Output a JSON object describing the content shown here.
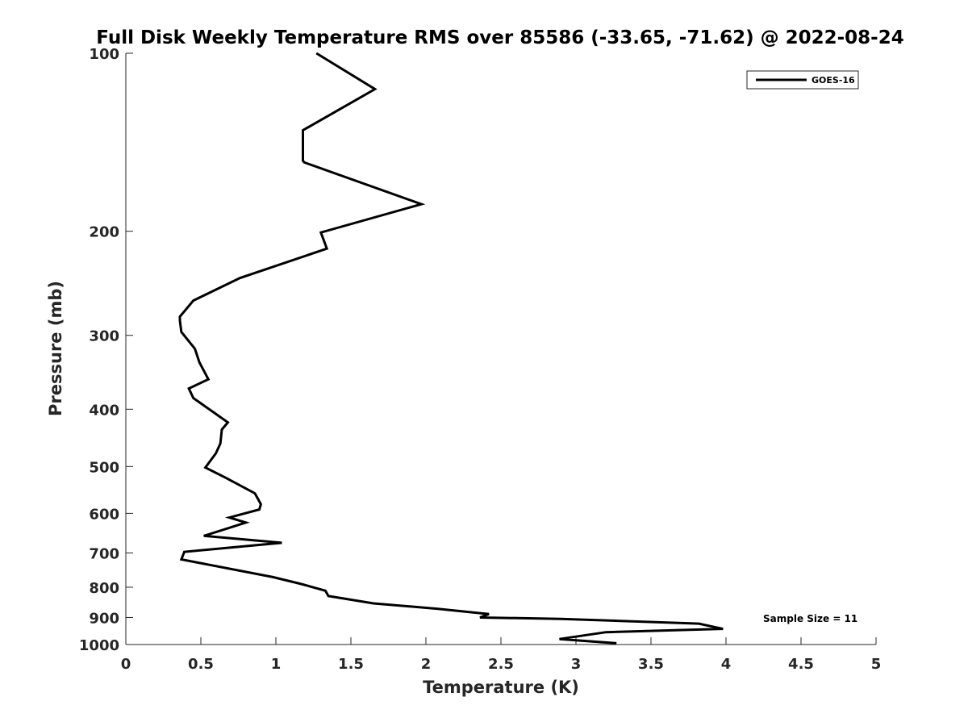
{
  "chart_data": {
    "type": "line",
    "title": "Full Disk Weekly Temperature RMS over 85586 (-33.65, -71.62) @ 2022-08-24",
    "xlabel": "Temperature (K)",
    "ylabel": "Pressure (mb)",
    "xlim": [
      0,
      5
    ],
    "ylim": [
      100,
      1000
    ],
    "y_scale": "log",
    "y_reversed": true,
    "x_ticks": [
      "0",
      "0.5",
      "1",
      "1.5",
      "2",
      "2.5",
      "3",
      "3.5",
      "4",
      "4.5",
      "5"
    ],
    "y_ticks": [
      "100",
      "200",
      "300",
      "400",
      "500",
      "600",
      "700",
      "800",
      "900",
      "1000"
    ],
    "grid": false,
    "legend_position": "top-right",
    "series": [
      {
        "name": "GOES-16",
        "color": "#000000",
        "x": [
          1.27,
          1.66,
          1.18,
          1.18,
          1.19,
          1.97,
          1.3,
          1.34,
          0.76,
          0.45,
          0.36,
          0.36,
          0.37,
          0.46,
          0.49,
          0.55,
          0.42,
          0.45,
          0.68,
          0.64,
          0.63,
          0.6,
          0.53,
          0.67,
          0.86,
          0.9,
          0.89,
          0.69,
          0.8,
          0.52,
          1.04,
          0.39,
          0.37,
          0.98,
          1.17,
          1.33,
          1.35,
          1.65,
          2.08,
          2.42,
          2.36,
          2.9,
          3.82,
          3.98,
          3.2,
          2.89,
          3.27
        ],
        "y": [
          100,
          115,
          135,
          152,
          153,
          180,
          201,
          214,
          240,
          262,
          279,
          283,
          296,
          316,
          333,
          356,
          369,
          383,
          421,
          433,
          457,
          475,
          502,
          523,
          555,
          579,
          591,
          610,
          622,
          655,
          673,
          697,
          718,
          769,
          790,
          811,
          828,
          852,
          870,
          888,
          900,
          905,
          922,
          941,
          953,
          979,
          995
        ]
      }
    ],
    "annotation": "Sample Size = 11"
  }
}
